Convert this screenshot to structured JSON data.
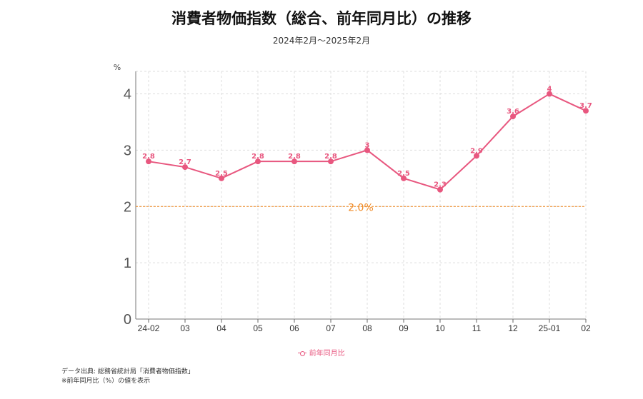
{
  "chart_data": {
    "type": "line",
    "title": "消費者物価指数（総合、前年同月比）の推移",
    "subtitle": "2024年2月〜2025年2月",
    "ylabel": "%",
    "categories": [
      "24-02",
      "03",
      "04",
      "05",
      "06",
      "07",
      "08",
      "09",
      "10",
      "11",
      "12",
      "25-01",
      "02"
    ],
    "series": [
      {
        "name": "前年同月比",
        "values": [
          2.8,
          2.7,
          2.5,
          2.8,
          2.8,
          2.8,
          3,
          2.5,
          2.3,
          2.9,
          3.6,
          4,
          3.7
        ]
      }
    ],
    "data_labels": [
      "2.8",
      "2.7",
      "2.5",
      "2.8",
      "2.8",
      "2.8",
      "3",
      "2.5",
      "2.3",
      "2.9",
      "3.6",
      "4",
      "3.7"
    ],
    "ylim": [
      0,
      4.4
    ],
    "yticks": [
      0,
      1,
      2,
      3,
      4
    ],
    "reference_line": {
      "value": 2.0,
      "label": "2.0%",
      "color": "#f08a24"
    },
    "series_color": "#e8577f",
    "grid": true,
    "legend_position": "bottom"
  },
  "notes": {
    "source": "データ出典: 総務省統計局「消費者物価指数」",
    "note": "※前年同月比（%）の値を表示"
  }
}
